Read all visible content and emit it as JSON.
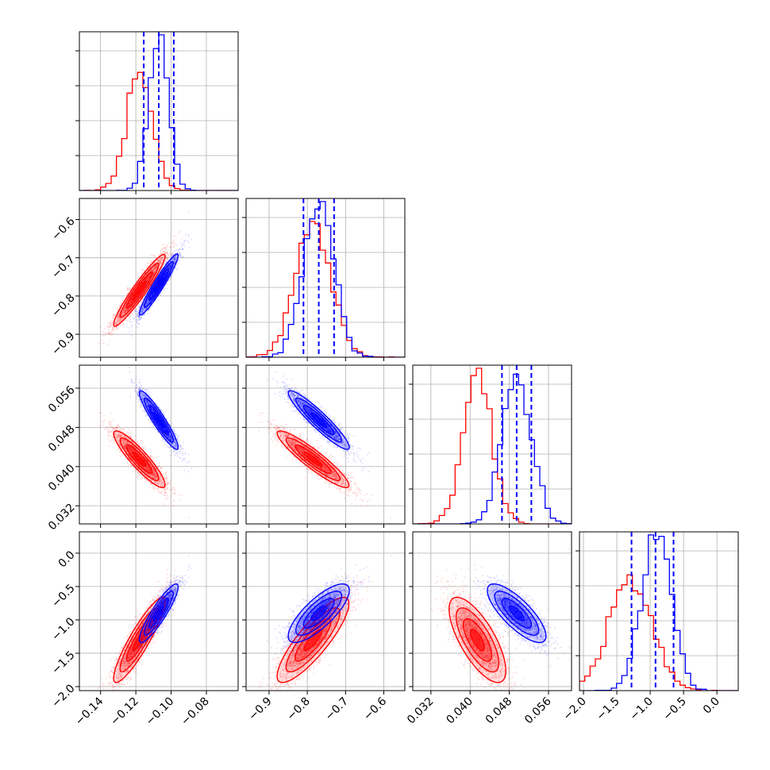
{
  "chart_data": {
    "type": "corner",
    "title": "",
    "n_params": 4,
    "grid": true,
    "params": [
      {
        "xlabel": "",
        "range": [
          -0.152,
          -0.062
        ],
        "ticks": [
          -0.14,
          -0.12,
          -0.1,
          -0.08
        ],
        "tick_labels": [
          "−0.14",
          "−0.12",
          "−0.10",
          "−0.08"
        ]
      },
      {
        "xlabel": "",
        "range": [
          -0.96,
          -0.545
        ],
        "ticks": [
          -0.9,
          -0.8,
          -0.7,
          -0.6
        ],
        "tick_labels": [
          "−0.9",
          "−0.8",
          "−0.7",
          "−0.6"
        ]
      },
      {
        "xlabel": "",
        "range": [
          0.0283,
          0.0607
        ],
        "ticks": [
          0.032,
          0.04,
          0.048,
          0.056
        ],
        "tick_labels": [
          "0.032",
          "0.040",
          "0.048",
          "0.056"
        ]
      },
      {
        "xlabel": "",
        "range": [
          -2.06,
          0.32
        ],
        "ticks": [
          -2.0,
          -1.5,
          -1.0,
          -0.5,
          0.0
        ],
        "tick_labels": [
          "−2.0",
          "−1.5",
          "−1.0",
          "−0.5",
          "0.0"
        ]
      }
    ],
    "series": [
      {
        "color": "#ff0000",
        "means": [
          -0.118,
          -0.785,
          0.0415,
          -1.3
        ],
        "sds": [
          0.0073,
          0.047,
          0.0029,
          0.32
        ],
        "corr": [
          [
            1,
            0.95,
            -0.9,
            0.9
          ],
          [
            0.95,
            1,
            -0.92,
            0.85
          ],
          [
            -0.9,
            -0.92,
            1,
            -0.72
          ],
          [
            0.9,
            0.85,
            -0.72,
            1
          ]
        ]
      },
      {
        "color": "#0000ff",
        "means": [
          -0.107,
          -0.77,
          0.0495,
          -0.9
        ],
        "sds": [
          0.0055,
          0.04,
          0.003,
          0.22
        ],
        "corr": [
          [
            1,
            0.95,
            -0.93,
            0.9
          ],
          [
            0.95,
            1,
            -0.93,
            0.78
          ],
          [
            -0.93,
            -0.93,
            1,
            -0.78
          ],
          [
            0.9,
            0.78,
            -0.78,
            1
          ]
        ]
      }
    ],
    "quantile_lines": {
      "color": "#0000ff",
      "style": "dashed",
      "values": [
        [
          -0.1155,
          -0.107,
          -0.0985
        ],
        [
          -0.81,
          -0.77,
          -0.73
        ],
        [
          0.0465,
          0.0495,
          0.0525
        ],
        [
          -1.28,
          -0.92,
          -0.65
        ]
      ]
    }
  }
}
